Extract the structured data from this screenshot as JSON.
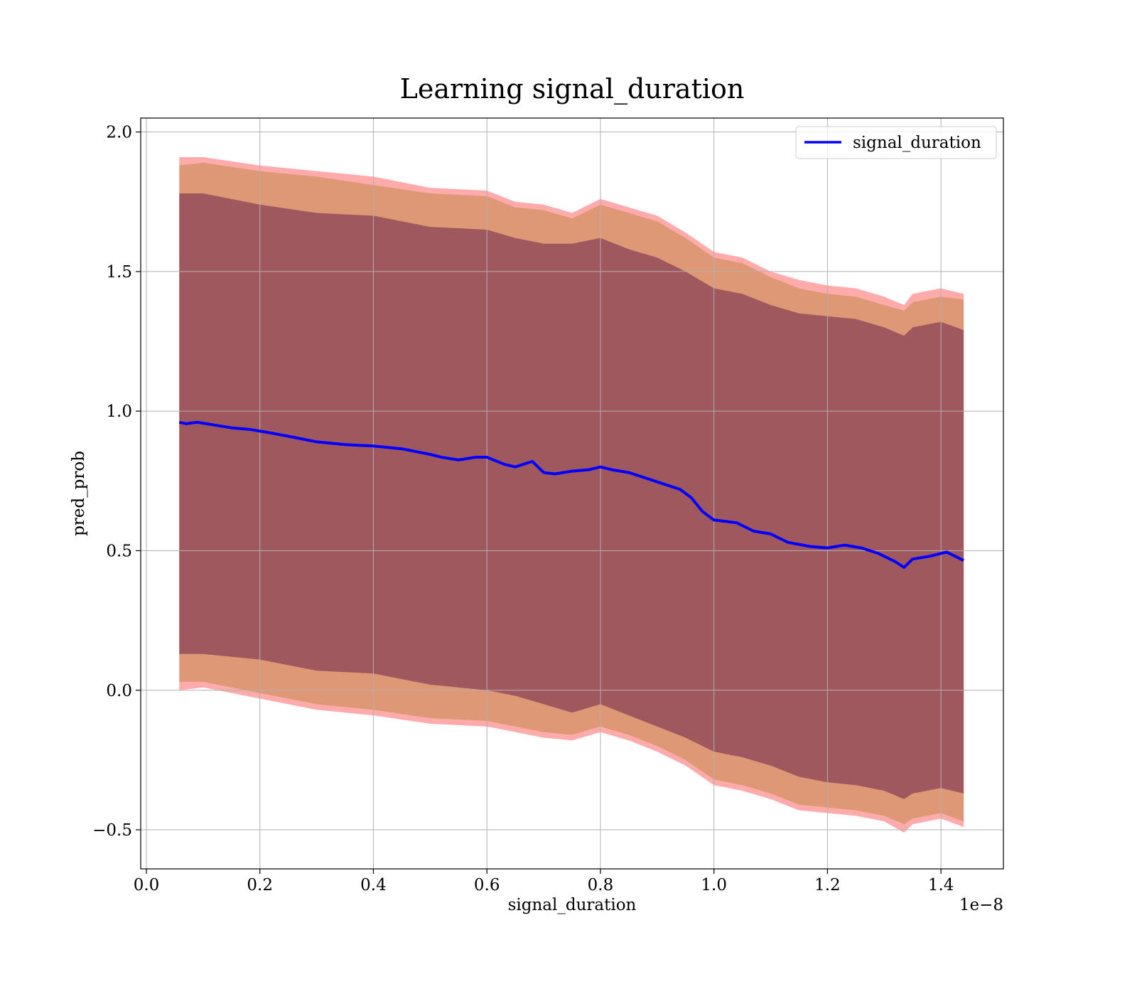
{
  "chart_data": {
    "type": "line",
    "title": "Learning signal_duration",
    "xlabel": "signal_duration",
    "ylabel": "pred_prob",
    "x_offset_label": "1e−8",
    "xlim": [
      -0.01,
      1.51
    ],
    "ylim": [
      -0.64,
      2.05
    ],
    "x_ticks": [
      0.0,
      0.2,
      0.4,
      0.6,
      0.8,
      1.0,
      1.2,
      1.4
    ],
    "x_tick_labels": [
      "0.0",
      "0.2",
      "0.4",
      "0.6",
      "0.8",
      "1.0",
      "1.2",
      "1.4"
    ],
    "y_ticks": [
      -0.5,
      0.0,
      0.5,
      1.0,
      1.5,
      2.0
    ],
    "y_tick_labels": [
      "−0.5",
      "0.0",
      "0.5",
      "1.0",
      "1.5",
      "2.0"
    ],
    "grid": true,
    "legend": {
      "position": "top-right",
      "entries": [
        "signal_duration"
      ]
    },
    "series": [
      {
        "name": "signal_duration",
        "color": "#0000ff",
        "x": [
          0.058,
          0.07,
          0.09,
          0.12,
          0.15,
          0.18,
          0.21,
          0.25,
          0.3,
          0.35,
          0.4,
          0.45,
          0.5,
          0.52,
          0.55,
          0.58,
          0.6,
          0.63,
          0.65,
          0.68,
          0.7,
          0.72,
          0.75,
          0.78,
          0.8,
          0.82,
          0.85,
          0.88,
          0.91,
          0.94,
          0.96,
          0.98,
          1.0,
          1.04,
          1.07,
          1.1,
          1.13,
          1.17,
          1.2,
          1.23,
          1.26,
          1.29,
          1.32,
          1.335,
          1.35,
          1.38,
          1.41,
          1.44
        ],
        "y": [
          0.96,
          0.955,
          0.96,
          0.95,
          0.94,
          0.935,
          0.925,
          0.91,
          0.89,
          0.88,
          0.875,
          0.865,
          0.845,
          0.835,
          0.825,
          0.835,
          0.835,
          0.81,
          0.8,
          0.82,
          0.78,
          0.775,
          0.785,
          0.79,
          0.8,
          0.79,
          0.78,
          0.76,
          0.74,
          0.72,
          0.69,
          0.64,
          0.61,
          0.6,
          0.57,
          0.56,
          0.53,
          0.515,
          0.51,
          0.52,
          0.51,
          0.49,
          0.46,
          0.44,
          0.47,
          0.48,
          0.495,
          0.465
        ]
      }
    ],
    "bands": [
      {
        "color": "#ff0000",
        "opacity": 0.33,
        "x": [
          0.058,
          0.1,
          0.2,
          0.3,
          0.4,
          0.5,
          0.6,
          0.65,
          0.7,
          0.75,
          0.8,
          0.85,
          0.9,
          0.95,
          1.0,
          1.05,
          1.1,
          1.15,
          1.2,
          1.25,
          1.3,
          1.335,
          1.35,
          1.4,
          1.44
        ],
        "upper": [
          1.91,
          1.91,
          1.88,
          1.86,
          1.84,
          1.8,
          1.79,
          1.75,
          1.74,
          1.71,
          1.76,
          1.73,
          1.7,
          1.64,
          1.57,
          1.55,
          1.5,
          1.47,
          1.45,
          1.44,
          1.41,
          1.38,
          1.42,
          1.44,
          1.42
        ],
        "lower": [
          0.0,
          0.01,
          -0.03,
          -0.07,
          -0.09,
          -0.12,
          -0.13,
          -0.15,
          -0.17,
          -0.18,
          -0.15,
          -0.18,
          -0.22,
          -0.27,
          -0.34,
          -0.36,
          -0.39,
          -0.43,
          -0.44,
          -0.45,
          -0.47,
          -0.51,
          -0.48,
          -0.46,
          -0.49
        ]
      },
      {
        "color": "#d09060",
        "opacity": 0.7,
        "x": [
          0.058,
          0.1,
          0.2,
          0.3,
          0.4,
          0.5,
          0.6,
          0.65,
          0.7,
          0.75,
          0.8,
          0.85,
          0.9,
          0.95,
          1.0,
          1.05,
          1.1,
          1.15,
          1.2,
          1.25,
          1.3,
          1.335,
          1.35,
          1.4,
          1.44
        ],
        "upper": [
          1.88,
          1.89,
          1.86,
          1.84,
          1.81,
          1.78,
          1.77,
          1.73,
          1.72,
          1.69,
          1.74,
          1.71,
          1.68,
          1.62,
          1.55,
          1.53,
          1.48,
          1.44,
          1.42,
          1.41,
          1.38,
          1.36,
          1.39,
          1.41,
          1.4
        ],
        "lower": [
          0.03,
          0.03,
          -0.01,
          -0.05,
          -0.07,
          -0.1,
          -0.11,
          -0.13,
          -0.15,
          -0.16,
          -0.13,
          -0.16,
          -0.2,
          -0.25,
          -0.32,
          -0.34,
          -0.37,
          -0.41,
          -0.42,
          -0.43,
          -0.45,
          -0.48,
          -0.46,
          -0.44,
          -0.47
        ]
      },
      {
        "color": "#7a3050",
        "opacity": 0.62,
        "x": [
          0.058,
          0.1,
          0.2,
          0.3,
          0.4,
          0.5,
          0.6,
          0.65,
          0.7,
          0.75,
          0.8,
          0.85,
          0.9,
          0.95,
          1.0,
          1.05,
          1.1,
          1.15,
          1.2,
          1.25,
          1.3,
          1.335,
          1.35,
          1.4,
          1.44
        ],
        "upper": [
          1.78,
          1.78,
          1.74,
          1.71,
          1.7,
          1.66,
          1.65,
          1.62,
          1.6,
          1.6,
          1.62,
          1.58,
          1.55,
          1.5,
          1.44,
          1.42,
          1.38,
          1.35,
          1.34,
          1.33,
          1.3,
          1.27,
          1.3,
          1.32,
          1.29
        ],
        "lower": [
          0.13,
          0.13,
          0.11,
          0.07,
          0.06,
          0.02,
          0.0,
          -0.02,
          -0.05,
          -0.08,
          -0.05,
          -0.09,
          -0.13,
          -0.17,
          -0.22,
          -0.24,
          -0.27,
          -0.31,
          -0.33,
          -0.34,
          -0.36,
          -0.39,
          -0.37,
          -0.35,
          -0.37
        ]
      }
    ]
  }
}
